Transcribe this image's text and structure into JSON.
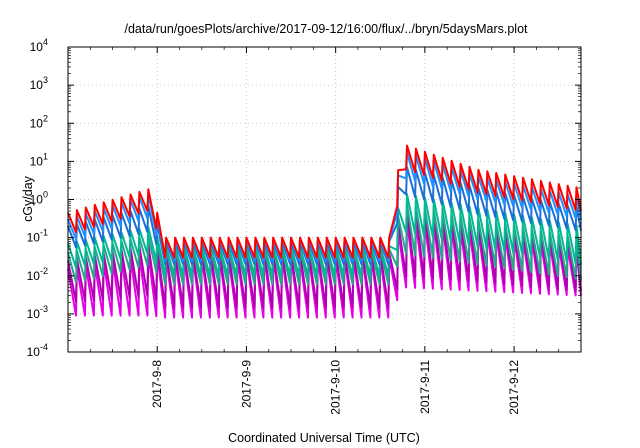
{
  "chart_data": {
    "type": "line",
    "title": "/data/run/goesPlots/archive/2017-09-12/16:00/flux/../bryn/5daysMars.plot",
    "xlabel": "Coordinated Universal Time (UTC)",
    "ylabel": "cGy/day",
    "x_range_days": [
      "2017-09-07T00:00",
      "2017-09-12T18:00"
    ],
    "xticks": [
      "2017-9-8",
      "2017-9-9",
      "2017-9-10",
      "2017-9-11",
      "2017-9-12"
    ],
    "y_scale": "log",
    "ylim": [
      0.0001,
      10000
    ],
    "yticks": [
      {
        "base": "10",
        "exp": "-4"
      },
      {
        "base": "10",
        "exp": "-3"
      },
      {
        "base": "10",
        "exp": "-2"
      },
      {
        "base": "10",
        "exp": "-1"
      },
      {
        "base": "10",
        "exp": "0"
      },
      {
        "base": "10",
        "exp": "1"
      },
      {
        "base": "10",
        "exp": "2"
      },
      {
        "base": "10",
        "exp": "3"
      },
      {
        "base": "10",
        "exp": "4"
      }
    ],
    "grid": true,
    "legend": "none",
    "sawtooth_period_days": 0.1,
    "series": [
      {
        "color": "#ff0000",
        "peaks": [
          0.45,
          2.0,
          0.1,
          0.1,
          30,
          6,
          2
        ],
        "troughs": [
          0.12,
          0.55,
          0.03,
          0.03,
          7,
          1.5,
          0.5
        ]
      },
      {
        "color": "#1e90ff",
        "peaks": [
          0.3,
          1.5,
          0.09,
          0.09,
          20,
          4,
          1.2
        ],
        "troughs": [
          0.08,
          0.35,
          0.025,
          0.025,
          4,
          1,
          0.3
        ]
      },
      {
        "color": "#1a6fd6",
        "peaks": [
          0.2,
          0.7,
          0.08,
          0.08,
          8,
          2,
          0.6
        ],
        "troughs": [
          0.05,
          0.15,
          0.02,
          0.02,
          1.5,
          0.4,
          0.15
        ]
      },
      {
        "color": "#00b894",
        "peaks": [
          0.07,
          0.2,
          0.06,
          0.06,
          1.5,
          0.6,
          0.2
        ],
        "troughs": [
          0.015,
          0.04,
          0.01,
          0.01,
          0.15,
          0.06,
          0.02
        ]
      },
      {
        "color": "#26a68b",
        "peaks": [
          0.04,
          0.12,
          0.05,
          0.05,
          0.8,
          0.3,
          0.1
        ],
        "troughs": [
          0.006,
          0.02,
          0.006,
          0.006,
          0.04,
          0.02,
          0.008
        ]
      },
      {
        "color": "#b000b0",
        "peaks": [
          0.025,
          0.07,
          0.04,
          0.04,
          0.5,
          0.25,
          0.08
        ],
        "troughs": [
          0.002,
          0.003,
          0.0015,
          0.0015,
          0.01,
          0.007,
          0.004
        ]
      },
      {
        "color": "#e600e6",
        "peaks": [
          0.015,
          0.04,
          0.03,
          0.03,
          0.3,
          0.15,
          0.05
        ],
        "troughs": [
          0.0009,
          0.0009,
          0.0008,
          0.0008,
          0.005,
          0.004,
          0.003
        ]
      }
    ],
    "segments_days": [
      0.0,
      0.95,
      1.05,
      3.65,
      3.72,
      4.6,
      5.75
    ]
  }
}
